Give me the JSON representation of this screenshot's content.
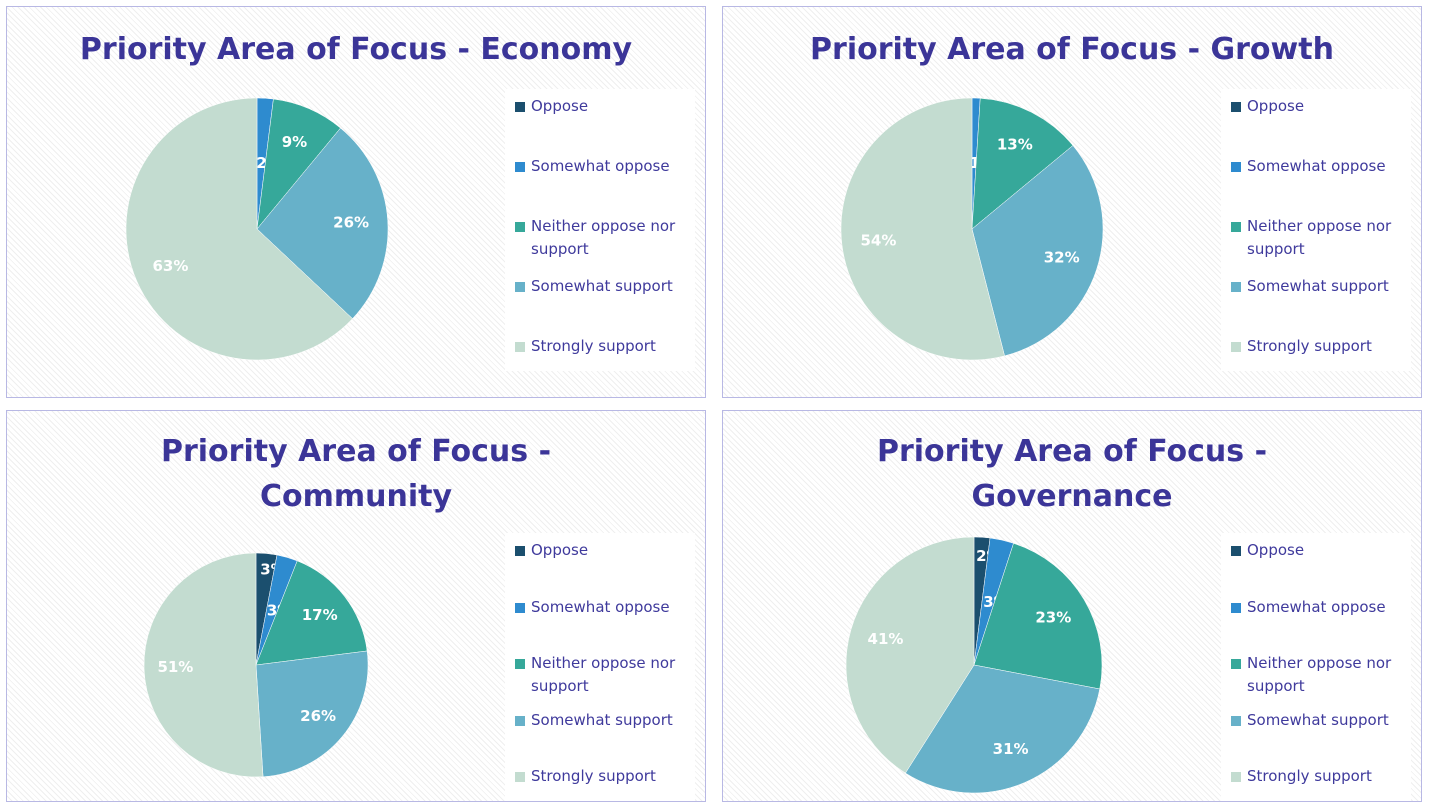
{
  "chart_data": [
    {
      "type": "pie",
      "title": "Priority Area of Focus - Economy",
      "categories": [
        "Oppose",
        "Somewhat oppose",
        "Neither oppose nor support",
        "Somewhat support",
        "Strongly support"
      ],
      "values": [
        0,
        2,
        9,
        26,
        63
      ],
      "value_labels": [
        "0%",
        "2%",
        "9%",
        "26%",
        "63%"
      ],
      "colors": [
        "#1b4f6e",
        "#2e8bcf",
        "#36a89a",
        "#67b1c9",
        "#c3dcd0"
      ],
      "legend": "right"
    },
    {
      "type": "pie",
      "title": "Priority Area of Focus - Growth",
      "categories": [
        "Oppose",
        "Somewhat oppose",
        "Neither oppose nor support",
        "Somewhat support",
        "Strongly support"
      ],
      "values": [
        0,
        1,
        13,
        32,
        54
      ],
      "value_labels": [
        "0%",
        "1%",
        "13%",
        "32%",
        "54%"
      ],
      "colors": [
        "#1b4f6e",
        "#2e8bcf",
        "#36a89a",
        "#67b1c9",
        "#c3dcd0"
      ],
      "legend": "right"
    },
    {
      "type": "pie",
      "title": "Priority Area of Focus - Community",
      "categories": [
        "Oppose",
        "Somewhat oppose",
        "Neither oppose nor support",
        "Somewhat support",
        "Strongly support"
      ],
      "values": [
        3,
        3,
        17,
        26,
        51
      ],
      "value_labels": [
        "3%",
        "3%",
        "17%",
        "26%",
        "51%"
      ],
      "colors": [
        "#1b4f6e",
        "#2e8bcf",
        "#36a89a",
        "#67b1c9",
        "#c3dcd0"
      ],
      "legend": "right"
    },
    {
      "type": "pie",
      "title": "Priority Area of Focus - Governance",
      "categories": [
        "Oppose",
        "Somewhat oppose",
        "Neither oppose nor support",
        "Somewhat support",
        "Strongly support"
      ],
      "values": [
        2,
        3,
        23,
        31,
        41
      ],
      "value_labels": [
        "2%",
        "3%",
        "23%",
        "31%",
        "41%"
      ],
      "colors": [
        "#1b4f6e",
        "#2e8bcf",
        "#36a89a",
        "#67b1c9",
        "#c3dcd0"
      ],
      "legend": "right"
    }
  ]
}
